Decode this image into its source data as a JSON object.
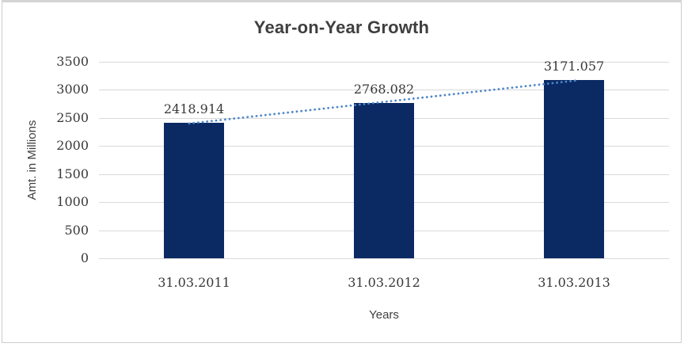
{
  "window": {
    "background_color": "#ffffff",
    "frame_border_color": "#cccccc"
  },
  "chart_data": {
    "type": "bar",
    "title": "Year-on-Year Growth",
    "xlabel": "Years",
    "ylabel": "Amt. in Millions",
    "categories": [
      "31.03.2011",
      "31.03.2012",
      "31.03.2013"
    ],
    "values": [
      2418.914,
      2768.082,
      3171.057
    ],
    "data_labels": [
      "2418.914",
      "2768.082",
      "3171.057"
    ],
    "y_ticks": [
      0,
      500,
      1000,
      1500,
      2000,
      2500,
      3000,
      3500
    ],
    "ylim": [
      0,
      3500
    ],
    "grid": true,
    "legend_position": "none",
    "bar_color": "#0b2a64",
    "gridline_color": "#d9d9d9",
    "label_text_color": "#383838",
    "title_color": "#3f3f3f",
    "trendline": {
      "type": "linear",
      "style": "dotted",
      "color": "#4e86c8"
    }
  }
}
